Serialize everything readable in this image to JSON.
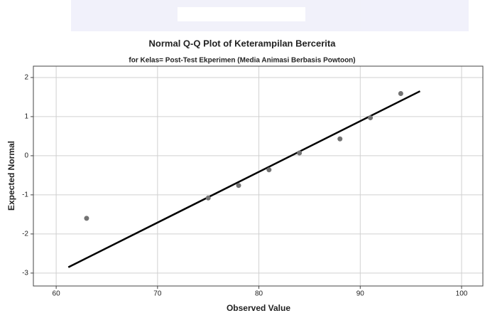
{
  "chart_data": {
    "type": "scatter",
    "title": "Normal Q-Q Plot of Keterampilan Bercerita",
    "subtitle": "for Kelas= Post-Test Ekperimen (Media Animasi Berbasis Powtoon)",
    "x_label": "Observed Value",
    "y_label": "Expected Normal",
    "x": [
      63,
      75,
      78,
      81,
      84,
      88,
      91,
      94
    ],
    "values": [
      -1.6,
      -1.08,
      -0.76,
      -0.36,
      0.07,
      0.43,
      0.97,
      1.59
    ],
    "color": "#737373",
    "line": {
      "x": [
        61.2,
        95.9
      ],
      "values": [
        -2.85,
        1.65
      ],
      "color": "#000000"
    },
    "xlim": [
      57.75,
      102.1
    ],
    "xticks": [
      60,
      70,
      80,
      90,
      100
    ],
    "ylim": [
      -3.33,
      2.29
    ],
    "yticks": [
      -3,
      -2,
      -1,
      0,
      1,
      2
    ],
    "grid": true
  }
}
